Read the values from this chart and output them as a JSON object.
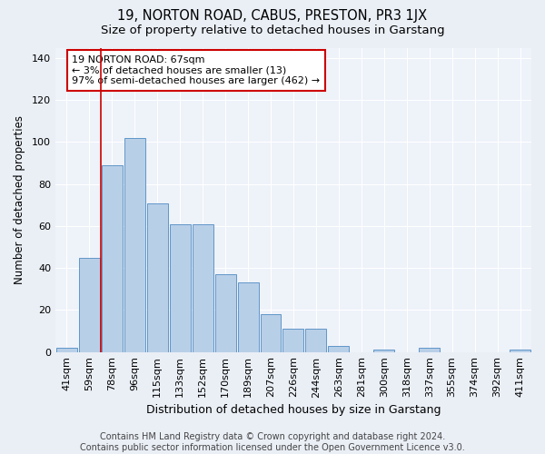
{
  "title": "19, NORTON ROAD, CABUS, PRESTON, PR3 1JX",
  "subtitle": "Size of property relative to detached houses in Garstang",
  "xlabel": "Distribution of detached houses by size in Garstang",
  "ylabel": "Number of detached properties",
  "categories": [
    "41sqm",
    "59sqm",
    "78sqm",
    "96sqm",
    "115sqm",
    "133sqm",
    "152sqm",
    "170sqm",
    "189sqm",
    "207sqm",
    "226sqm",
    "244sqm",
    "263sqm",
    "281sqm",
    "300sqm",
    "318sqm",
    "337sqm",
    "355sqm",
    "374sqm",
    "392sqm",
    "411sqm"
  ],
  "values": [
    2,
    45,
    89,
    102,
    71,
    61,
    61,
    37,
    33,
    18,
    11,
    11,
    3,
    0,
    1,
    0,
    2,
    0,
    0,
    0,
    1
  ],
  "bar_color": "#b8cfe8",
  "bar_edge_color": "#6096c8",
  "vline_x": 1.5,
  "vline_color": "#cc0000",
  "annotation_text": "19 NORTON ROAD: 67sqm\n← 3% of detached houses are smaller (13)\n97% of semi-detached houses are larger (462) →",
  "annotation_box_edge_color": "#cc0000",
  "ylim": [
    0,
    145
  ],
  "yticks": [
    0,
    20,
    40,
    60,
    80,
    100,
    120,
    140
  ],
  "bg_color": "#eaeff6",
  "plot_bg_color": "#eef2f9",
  "footer": "Contains HM Land Registry data © Crown copyright and database right 2024.\nContains public sector information licensed under the Open Government Licence v3.0.",
  "title_fontsize": 10.5,
  "subtitle_fontsize": 9.5,
  "xlabel_fontsize": 9,
  "ylabel_fontsize": 8.5,
  "tick_fontsize": 8,
  "footer_fontsize": 7
}
